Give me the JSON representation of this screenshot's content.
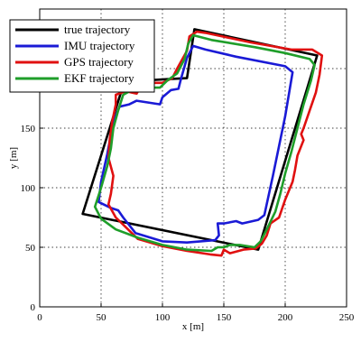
{
  "chart_data": {
    "type": "line",
    "xlabel": "x [m]",
    "ylabel": "y [m]",
    "xlim": [
      0,
      250
    ],
    "ylim": [
      0,
      250
    ],
    "xticks": [
      0,
      50,
      100,
      150,
      200,
      250
    ],
    "yticks": [
      0,
      50,
      100,
      150,
      200
    ],
    "grid": true,
    "legend_position": "top-left",
    "series": [
      {
        "name": "true trajectory",
        "color": "#000000",
        "points": [
          [
            35,
            78
          ],
          [
            178,
            48
          ],
          [
            226,
            211
          ],
          [
            126,
            233
          ],
          [
            120,
            192
          ],
          [
            101,
            191
          ],
          [
            69,
            189
          ],
          [
            35,
            78
          ]
        ]
      },
      {
        "name": "IMU trajectory",
        "color": "#1a1ad6",
        "points": [
          [
            64,
            81
          ],
          [
            58,
            83
          ],
          [
            48,
            88
          ],
          [
            50,
            105
          ],
          [
            55,
            128
          ],
          [
            60,
            155
          ],
          [
            65,
            168
          ],
          [
            73,
            170
          ],
          [
            79,
            173
          ],
          [
            98,
            170
          ],
          [
            100,
            176
          ],
          [
            107,
            182
          ],
          [
            113,
            183
          ],
          [
            115,
            191
          ],
          [
            120,
            209
          ],
          [
            125,
            219
          ],
          [
            135,
            216
          ],
          [
            160,
            210
          ],
          [
            200,
            202
          ],
          [
            206,
            197
          ],
          [
            200,
            160
          ],
          [
            190,
            110
          ],
          [
            183,
            77
          ],
          [
            178,
            73
          ],
          [
            165,
            70
          ],
          [
            160,
            72
          ],
          [
            150,
            70
          ],
          [
            145,
            70
          ],
          [
            146,
            60
          ],
          [
            143,
            56
          ],
          [
            120,
            54
          ],
          [
            100,
            55
          ],
          [
            78,
            62
          ],
          [
            68,
            75
          ],
          [
            64,
            81
          ]
        ]
      },
      {
        "name": "GPS trajectory",
        "color": "#e01010",
        "points": [
          [
            56,
            86
          ],
          [
            58,
            95
          ],
          [
            60,
            110
          ],
          [
            56,
            125
          ],
          [
            57,
            140
          ],
          [
            59,
            155
          ],
          [
            62,
            170
          ],
          [
            62,
            178
          ],
          [
            70,
            181
          ],
          [
            79,
            179
          ],
          [
            84,
            188
          ],
          [
            100,
            188
          ],
          [
            108,
            192
          ],
          [
            112,
            200
          ],
          [
            120,
            215
          ],
          [
            122,
            227
          ],
          [
            128,
            231
          ],
          [
            135,
            230
          ],
          [
            172,
            222
          ],
          [
            205,
            216
          ],
          [
            222,
            216
          ],
          [
            230,
            211
          ],
          [
            228,
            195
          ],
          [
            225,
            180
          ],
          [
            220,
            165
          ],
          [
            215,
            150
          ],
          [
            213,
            145
          ],
          [
            215,
            140
          ],
          [
            210,
            127
          ],
          [
            208,
            115
          ],
          [
            206,
            105
          ],
          [
            200,
            90
          ],
          [
            195,
            75
          ],
          [
            188,
            70
          ],
          [
            185,
            60
          ],
          [
            181,
            53
          ],
          [
            176,
            49
          ],
          [
            166,
            48
          ],
          [
            155,
            45
          ],
          [
            150,
            48
          ],
          [
            148,
            43
          ],
          [
            139,
            44
          ],
          [
            120,
            47
          ],
          [
            100,
            51
          ],
          [
            80,
            57
          ],
          [
            70,
            67
          ],
          [
            62,
            75
          ],
          [
            56,
            86
          ]
        ]
      },
      {
        "name": "EKF trajectory",
        "color": "#1f9e2a",
        "points": [
          [
            45,
            84
          ],
          [
            50,
            100
          ],
          [
            55,
            118
          ],
          [
            58,
            133
          ],
          [
            60,
            150
          ],
          [
            64,
            165
          ],
          [
            68,
            178
          ],
          [
            75,
            182
          ],
          [
            86,
            184
          ],
          [
            98,
            184
          ],
          [
            104,
            190
          ],
          [
            112,
            196
          ],
          [
            118,
            208
          ],
          [
            121,
            221
          ],
          [
            125,
            228
          ],
          [
            140,
            224
          ],
          [
            175,
            218
          ],
          [
            200,
            213
          ],
          [
            220,
            208
          ],
          [
            224,
            203
          ],
          [
            221,
            190
          ],
          [
            215,
            170
          ],
          [
            210,
            150
          ],
          [
            205,
            130
          ],
          [
            200,
            112
          ],
          [
            196,
            95
          ],
          [
            192,
            80
          ],
          [
            185,
            65
          ],
          [
            180,
            55
          ],
          [
            175,
            50
          ],
          [
            163,
            52
          ],
          [
            155,
            52
          ],
          [
            150,
            50
          ],
          [
            145,
            50
          ],
          [
            140,
            47
          ],
          [
            120,
            48
          ],
          [
            100,
            52
          ],
          [
            80,
            58
          ],
          [
            62,
            65
          ],
          [
            50,
            74
          ],
          [
            45,
            84
          ]
        ]
      }
    ]
  }
}
